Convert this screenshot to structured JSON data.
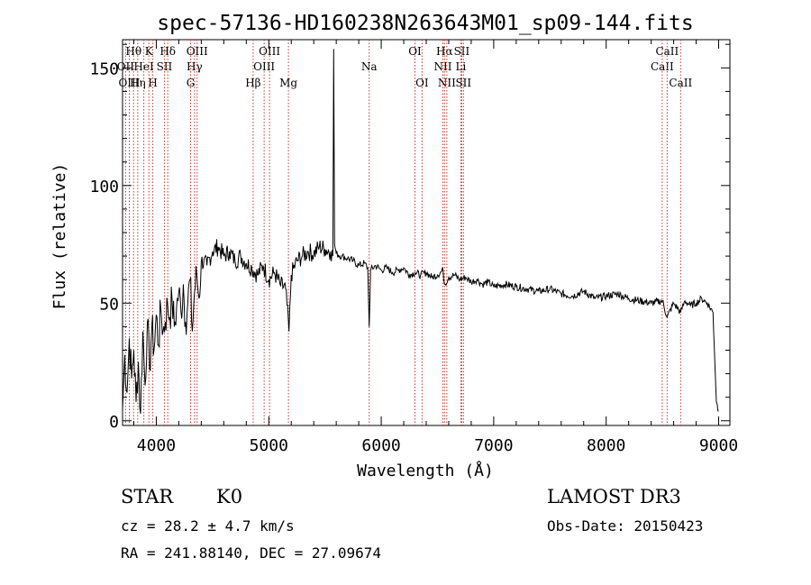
{
  "chart_data": {
    "type": "line",
    "title": "spec-57136-HD160238N263643M01_sp09-144.fits",
    "xlabel": "Wavelength (Å)",
    "ylabel": "Flux (relative)",
    "xlim": [
      3700,
      9100
    ],
    "ylim": [
      -2,
      162
    ],
    "xticks": [
      4000,
      5000,
      6000,
      7000,
      8000,
      9000
    ],
    "xtick_labels": [
      "4000",
      "5000",
      "6000",
      "7000",
      "8000",
      "9000"
    ],
    "yticks": [
      0,
      50,
      100,
      150
    ],
    "ytick_labels": [
      "0",
      "50",
      "100",
      "150"
    ],
    "line_color": "#000000",
    "marker_color": "#c0392b",
    "series": [
      {
        "name": "flux",
        "x": [
          3700,
          3720,
          3740,
          3760,
          3780,
          3800,
          3820,
          3840,
          3860,
          3880,
          3900,
          3920,
          3940,
          3960,
          3980,
          4000,
          4020,
          4040,
          4060,
          4080,
          4100,
          4120,
          4140,
          4160,
          4180,
          4200,
          4220,
          4240,
          4260,
          4280,
          4300,
          4320,
          4340,
          4360,
          4380,
          4400,
          4450,
          4500,
          4550,
          4600,
          4650,
          4700,
          4750,
          4800,
          4850,
          4900,
          4950,
          5000,
          5050,
          5100,
          5150,
          5180,
          5200,
          5250,
          5300,
          5350,
          5400,
          5450,
          5500,
          5550,
          5570,
          5577,
          5585,
          5600,
          5650,
          5700,
          5750,
          5800,
          5850,
          5880,
          5893,
          5905,
          5950,
          6000,
          6050,
          6100,
          6150,
          6200,
          6250,
          6300,
          6350,
          6400,
          6450,
          6500,
          6550,
          6563,
          6600,
          6650,
          6700,
          6750,
          6800,
          6850,
          6900,
          6950,
          7000,
          7100,
          7200,
          7300,
          7400,
          7500,
          7600,
          7700,
          7800,
          7900,
          8000,
          8100,
          8200,
          8300,
          8400,
          8500,
          8542,
          8600,
          8662,
          8700,
          8750,
          8800,
          8850,
          8900,
          8950,
          8980,
          9000
        ],
        "y": [
          5,
          28,
          12,
          35,
          18,
          30,
          8,
          25,
          3,
          38,
          15,
          42,
          22,
          40,
          30,
          45,
          32,
          48,
          38,
          42,
          50,
          44,
          52,
          40,
          48,
          55,
          46,
          58,
          42,
          50,
          60,
          38,
          55,
          62,
          52,
          68,
          66,
          72,
          74,
          70,
          72,
          68,
          70,
          67,
          65,
          62,
          66,
          60,
          63,
          58,
          56,
          38,
          62,
          68,
          70,
          72,
          71,
          74,
          73,
          72,
          70,
          158,
          75,
          71,
          70,
          69,
          68,
          66,
          67,
          65,
          40,
          64,
          66,
          64,
          65,
          63,
          64,
          65,
          62,
          63,
          62,
          63,
          61,
          62,
          64,
          58,
          61,
          62,
          60,
          61,
          59,
          60,
          58,
          59,
          57,
          58,
          57,
          56,
          55,
          56,
          54,
          53,
          55,
          52,
          53,
          54,
          52,
          51,
          50,
          51,
          44,
          50,
          46,
          51,
          49,
          50,
          52,
          50,
          46,
          8,
          4
        ]
      }
    ],
    "line_markers": [
      {
        "label": "Hθ",
        "wavelength": 3798,
        "row": 0
      },
      {
        "label": "OII",
        "wavelength": 3727,
        "row": 1
      },
      {
        "label": "OIII",
        "wavelength": 3760,
        "row": 2
      },
      {
        "label": "Hη",
        "wavelength": 3835,
        "row": 2
      },
      {
        "label": "HeI",
        "wavelength": 3889,
        "row": 1
      },
      {
        "label": "K",
        "wavelength": 3934,
        "row": 0
      },
      {
        "label": "H",
        "wavelength": 3969,
        "row": 2
      },
      {
        "label": "SII",
        "wavelength": 4072,
        "row": 1
      },
      {
        "label": "Hδ",
        "wavelength": 4102,
        "row": 0
      },
      {
        "label": "Hγ",
        "wavelength": 4340,
        "row": 1
      },
      {
        "label": "G",
        "wavelength": 4305,
        "row": 2
      },
      {
        "label": "OIII",
        "wavelength": 4363,
        "row": 0
      },
      {
        "label": "Hβ",
        "wavelength": 4861,
        "row": 2
      },
      {
        "label": "OIII",
        "wavelength": 4959,
        "row": 1
      },
      {
        "label": "OIII",
        "wavelength": 5007,
        "row": 0
      },
      {
        "label": "Mg",
        "wavelength": 5175,
        "row": 2
      },
      {
        "label": "Na",
        "wavelength": 5893,
        "row": 1
      },
      {
        "label": "OI",
        "wavelength": 6300,
        "row": 0
      },
      {
        "label": "OI",
        "wavelength": 6363,
        "row": 2
      },
      {
        "label": "NII",
        "wavelength": 6548,
        "row": 1
      },
      {
        "label": "Hα",
        "wavelength": 6563,
        "row": 0
      },
      {
        "label": "NII",
        "wavelength": 6583,
        "row": 2
      },
      {
        "label": "Li",
        "wavelength": 6708,
        "row": 1
      },
      {
        "label": "SII",
        "wavelength": 6716,
        "row": 0
      },
      {
        "label": "SII",
        "wavelength": 6731,
        "row": 2
      },
      {
        "label": "CaII",
        "wavelength": 8498,
        "row": 1
      },
      {
        "label": "CaII",
        "wavelength": 8542,
        "row": 0
      },
      {
        "label": "CaII",
        "wavelength": 8662,
        "row": 2
      }
    ]
  },
  "info": {
    "object_class": "STAR",
    "subclass": "K0",
    "survey": "LAMOST DR3",
    "redshift": "cz = 28.2 ± 4.7 km/s",
    "obs_date": "Obs-Date: 20150423",
    "coordinates": "RA = 241.88140, DEC =  27.09674"
  }
}
